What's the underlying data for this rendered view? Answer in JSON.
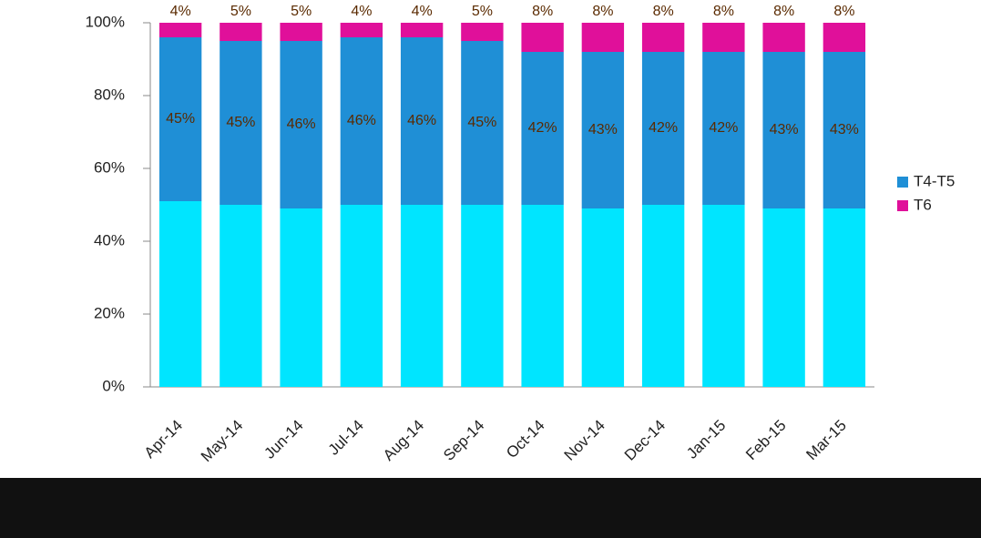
{
  "chart_data": {
    "type": "bar",
    "stacked": true,
    "categories": [
      "Apr-14",
      "May-14",
      "Jun-14",
      "Jul-14",
      "Aug-14",
      "Sep-14",
      "Oct-14",
      "Nov-14",
      "Dec-14",
      "Jan-15",
      "Feb-15",
      "Mar-15"
    ],
    "series": [
      {
        "color": "#00e5ff",
        "values": [
          51,
          50,
          49,
          50,
          50,
          50,
          50,
          49,
          50,
          50,
          49,
          49
        ]
      },
      {
        "name": "T4-T5",
        "color": "#1f8fd6",
        "values": [
          45,
          45,
          46,
          46,
          46,
          45,
          42,
          43,
          42,
          42,
          43,
          43
        ],
        "value_labels": [
          "45%",
          "45%",
          "46%",
          "46%",
          "46%",
          "45%",
          "42%",
          "43%",
          "42%",
          "42%",
          "43%",
          "43%"
        ]
      },
      {
        "name": "T6",
        "color": "#e0109a",
        "values": [
          4,
          5,
          5,
          4,
          4,
          5,
          8,
          8,
          8,
          8,
          8,
          8
        ],
        "value_labels": [
          "4%",
          "5%",
          "5%",
          "4%",
          "4%",
          "5%",
          "8%",
          "8%",
          "8%",
          "8%",
          "8%",
          "8%"
        ]
      }
    ],
    "ylim": [
      0,
      100
    ],
    "yticks": [
      {
        "value": 0,
        "label": "0%"
      },
      {
        "value": 20,
        "label": "20%"
      },
      {
        "value": 40,
        "label": "40%"
      },
      {
        "value": 60,
        "label": "60%"
      },
      {
        "value": 80,
        "label": "80%"
      },
      {
        "value": 100,
        "label": "100%"
      }
    ],
    "legend": "right"
  }
}
